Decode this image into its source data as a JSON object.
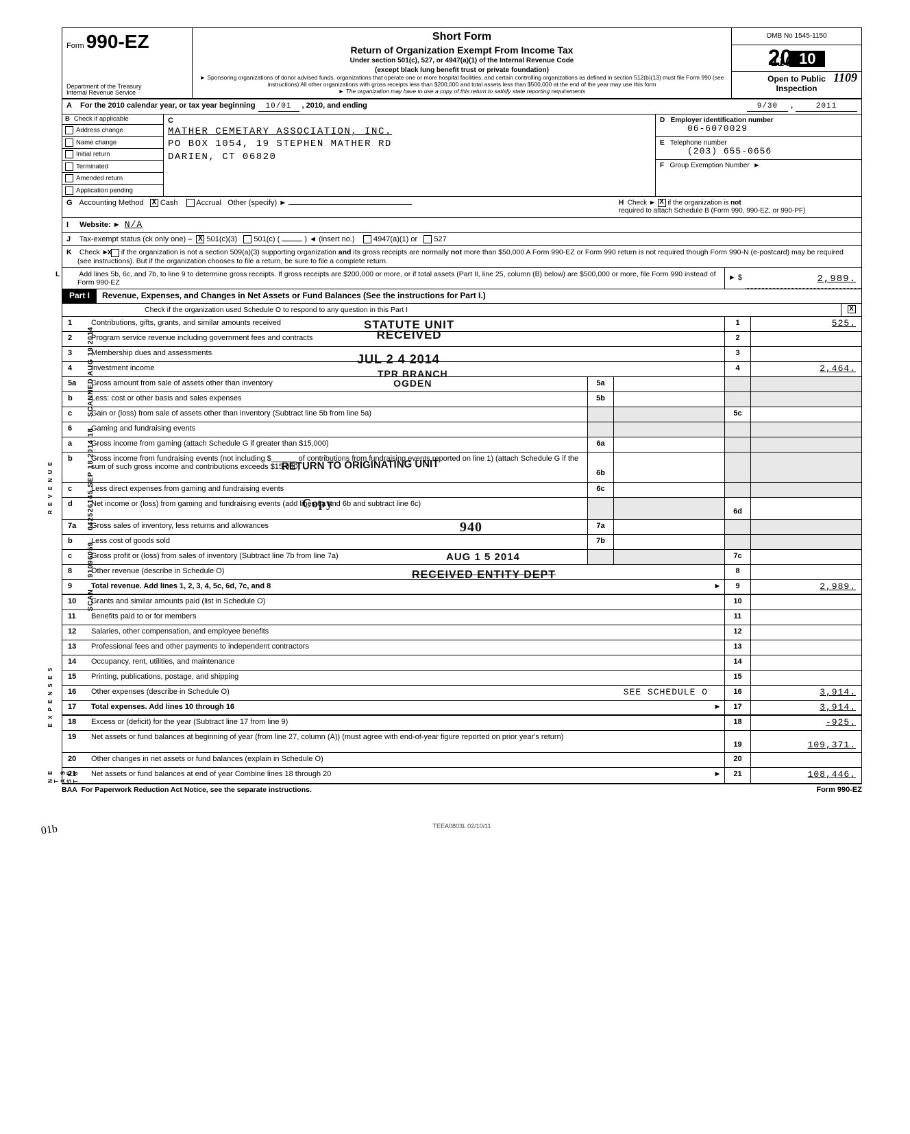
{
  "handwritten_top_right": "1109",
  "form": {
    "prefix": "Form",
    "number": "990-EZ",
    "dept1": "Department of the Treasury",
    "dept2": "Internal Revenue Service"
  },
  "titles": {
    "short_form": "Short Form",
    "main": "Return of Organization Exempt From Income Tax",
    "under": "Under section 501(c), 527, or 4947(a)(1) of the Internal Revenue Code",
    "except": "(except black lung benefit trust or private foundation)",
    "sponsor": "► Sponsoring organizations of donor advised funds, organizations that operate one or more hospital facilities, and certain controlling organizations as defined in section 512(b)(13) must file Form 990 (see instructions)  All other organizations with gross receipts less than $200,000 and total assets less than $500,000 at the end of the year may use this form",
    "copy": "► The organization may have to use a copy of this return to satisfy state reporting requirements"
  },
  "right_header": {
    "omb": "OMB No  1545-1150",
    "year_prefix": "20",
    "year_bar": "10",
    "open1": "Open to Public",
    "open2": "Inspection",
    "hw": "1109"
  },
  "row_a": {
    "label": "A",
    "text1": "For the 2010 calendar year, or tax year beginning",
    "begin": "10/01",
    "text2": ", 2010, and ending",
    "end": "9/30",
    "text3": ",",
    "year": "2011"
  },
  "col_b": {
    "hdr_b": "B",
    "hdr_txt": "Check if applicable",
    "rows": [
      "Address change",
      "Name change",
      "Initial return",
      "Terminated",
      "Amended return",
      "Application pending"
    ]
  },
  "col_c": {
    "label": "C",
    "name": "MATHER CEMETARY ASSOCIATION, INC.",
    "addr1": "PO BOX 1054, 19 STEPHEN MATHER RD",
    "addr2": "DARIEN, CT 06820"
  },
  "col_def": {
    "d_lab": "D",
    "d_txt": "Employer identification number",
    "d_val": "06-6070029",
    "e_lab": "E",
    "e_txt": "Telephone number",
    "e_val": "(203) 655-0656",
    "f_lab": "F",
    "f_txt": "Group Exemption Number",
    "f_arrow": "►"
  },
  "row_g": {
    "lab": "G",
    "txt": "Accounting Method",
    "cash": "Cash",
    "accrual": "Accrual",
    "other": "Other (specify) ►"
  },
  "row_h": {
    "lab": "H",
    "txt1": "Check ►",
    "txt2": "if the organization is",
    "not": "not",
    "txt3": "required to attach Schedule B (Form 990, 990-EZ, or 990-PF)"
  },
  "row_i": {
    "lab": "I",
    "txt": "Website: ►",
    "val": "N/A"
  },
  "row_j": {
    "lab": "J",
    "txt": "Tax-exempt status (ck only one) –",
    "c3": "501(c)(3)",
    "c": "501(c) (",
    "insert": ")  ◄ (insert no.)",
    "a1": "4947(a)(1) or",
    "s527": "527"
  },
  "row_k": {
    "lab": "K",
    "txt": "Check ►        if the organization is not a section 509(a)(3) supporting organization and its gross receipts are normally not more than $50,000  A Form 990-EZ or Form 990 return is not required though Form 990-N (e-postcard) may be required (see instructions). But if the organization chooses to file a return, be sure to file a complete return."
  },
  "row_l": {
    "lab": "L",
    "txt": "Add lines 5b, 6c, and 7b, to line 9 to determine gross receipts. If gross receipts are $200,000 or more, or if total assets (Part II, line 25, column (B) below) are $500,000 or more, file Form 990 instead of Form 990-EZ",
    "arrow": "► $",
    "val": "2,989."
  },
  "part1": {
    "tag": "Part I",
    "title": "Revenue, Expenses, and Changes in Net Assets or Fund Balances (See the instructions for Part I.)",
    "sched_o": "Check if the organization used Schedule O to respond to any question in this Part I",
    "sched_o_ck": "X"
  },
  "lines": {
    "l1": {
      "n": "1",
      "d": "Contributions, gifts, grants, and similar amounts received",
      "r": "1",
      "v": "525."
    },
    "l2": {
      "n": "2",
      "d": "Program service revenue including government fees and contracts",
      "r": "2",
      "v": ""
    },
    "l3": {
      "n": "3",
      "d": "Membership dues and assessments",
      "r": "3",
      "v": ""
    },
    "l4": {
      "n": "4",
      "d": "Investment income",
      "r": "4",
      "v": "2,464."
    },
    "l5a": {
      "n": "5a",
      "d": "Gross amount from sale of assets other than inventory",
      "m": "5a"
    },
    "l5b": {
      "n": "b",
      "d": "Less: cost or other basis and sales expenses",
      "m": "5b"
    },
    "l5c": {
      "n": "c",
      "d": "Gain or (loss) from sale of assets other than inventory (Subtract line 5b from line 5a)",
      "r": "5c",
      "v": ""
    },
    "l6": {
      "n": "6",
      "d": "Gaming and fundraising events"
    },
    "l6a": {
      "n": "a",
      "d": "Gross income from gaming (attach Schedule G if greater than $15,000)",
      "m": "6a"
    },
    "l6b": {
      "n": "b",
      "d": "Gross income from fundraising events (not including $______ of contributions from fundraising events reported on line 1) (attach Schedule G if the sum of such gross income and contributions exceeds $15,000)",
      "m": "6b"
    },
    "l6c": {
      "n": "c",
      "d": "Less  direct expenses from gaming and fundraising events",
      "m": "6c"
    },
    "l6d": {
      "n": "d",
      "d": "Net income or (loss) from gaming and fundraising events (add lines 6a and 6b and subtract line 6c)",
      "r": "6d",
      "v": ""
    },
    "l7a": {
      "n": "7a",
      "d": "Gross sales of inventory, less returns and allowances",
      "m": "7a"
    },
    "l7b": {
      "n": "b",
      "d": "Less  cost of goods sold",
      "m": "7b"
    },
    "l7c": {
      "n": "c",
      "d": "Gross profit or (loss) from sales of inventory (Subtract line 7b from line 7a)",
      "r": "7c",
      "v": ""
    },
    "l8": {
      "n": "8",
      "d": "Other revenue (describe in Schedule O)",
      "r": "8",
      "v": ""
    },
    "l9": {
      "n": "9",
      "d": "Total revenue. Add lines 1, 2, 3, 4, 5c, 6d, 7c, and 8",
      "arrow": "►",
      "r": "9",
      "v": "2,989."
    },
    "l10": {
      "n": "10",
      "d": "Grants and similar amounts paid (list in Schedule O)",
      "r": "10",
      "v": ""
    },
    "l11": {
      "n": "11",
      "d": "Benefits paid to or for members",
      "r": "11",
      "v": ""
    },
    "l12": {
      "n": "12",
      "d": "Salaries, other compensation, and employee benefits",
      "r": "12",
      "v": ""
    },
    "l13": {
      "n": "13",
      "d": "Professional fees and other payments to independent contractors",
      "r": "13",
      "v": ""
    },
    "l14": {
      "n": "14",
      "d": "Occupancy, rent, utilities, and maintenance",
      "r": "14",
      "v": ""
    },
    "l15": {
      "n": "15",
      "d": "Printing, publications, postage, and shipping",
      "r": "15",
      "v": ""
    },
    "l16": {
      "n": "16",
      "d": "Other expenses (describe in Schedule O)",
      "extra": "SEE SCHEDULE O",
      "r": "16",
      "v": "3,914."
    },
    "l17": {
      "n": "17",
      "d": "Total expenses. Add lines 10 through 16",
      "arrow": "►",
      "r": "17",
      "v": "3,914."
    },
    "l18": {
      "n": "18",
      "d": "Excess or (deficit) for the year (Subtract line 17 from line 9)",
      "r": "18",
      "v": "-925."
    },
    "l19": {
      "n": "19",
      "d": "Net assets or fund balances at beginning of year (from line 27, column (A)) (must agree with end-of-year figure reported on prior year's return)",
      "r": "19",
      "v": "109,371."
    },
    "l20": {
      "n": "20",
      "d": "Other changes in net assets or fund balances (explain in Schedule O)",
      "r": "20",
      "v": ""
    },
    "l21": {
      "n": "21",
      "d": "Net assets or fund balances at end of year  Combine lines 18 through 20",
      "arrow": "►",
      "r": "21",
      "v": "108,446."
    }
  },
  "stamps": {
    "statute": "STATUTE UNIT\nRECEIVED",
    "date": "JUL 2 4 2014",
    "branch": "TPR BRANCH\nOGDEN",
    "return": "RETURN TO ORIGINATING UNIT",
    "copy": "Copy",
    "940": "940",
    "aug15": "AUG 1 5 2014",
    "rcvd_entity": "RECEIVED ENTITY DEPT"
  },
  "footer": {
    "baa": "BAA",
    "pra": "For Paperwork Reduction Act Notice, see the separate instructions.",
    "form": "Form 990-EZ",
    "teea": "TEEA0803L  02/10/11"
  },
  "left_margin": {
    "scanned": "SCANNED AUG 19 2014",
    "numbers": "042526145 SEP 18 2014 18",
    "bottom1": "91096059",
    "bottom2": "SCAN",
    "bottom_left": "01b"
  }
}
